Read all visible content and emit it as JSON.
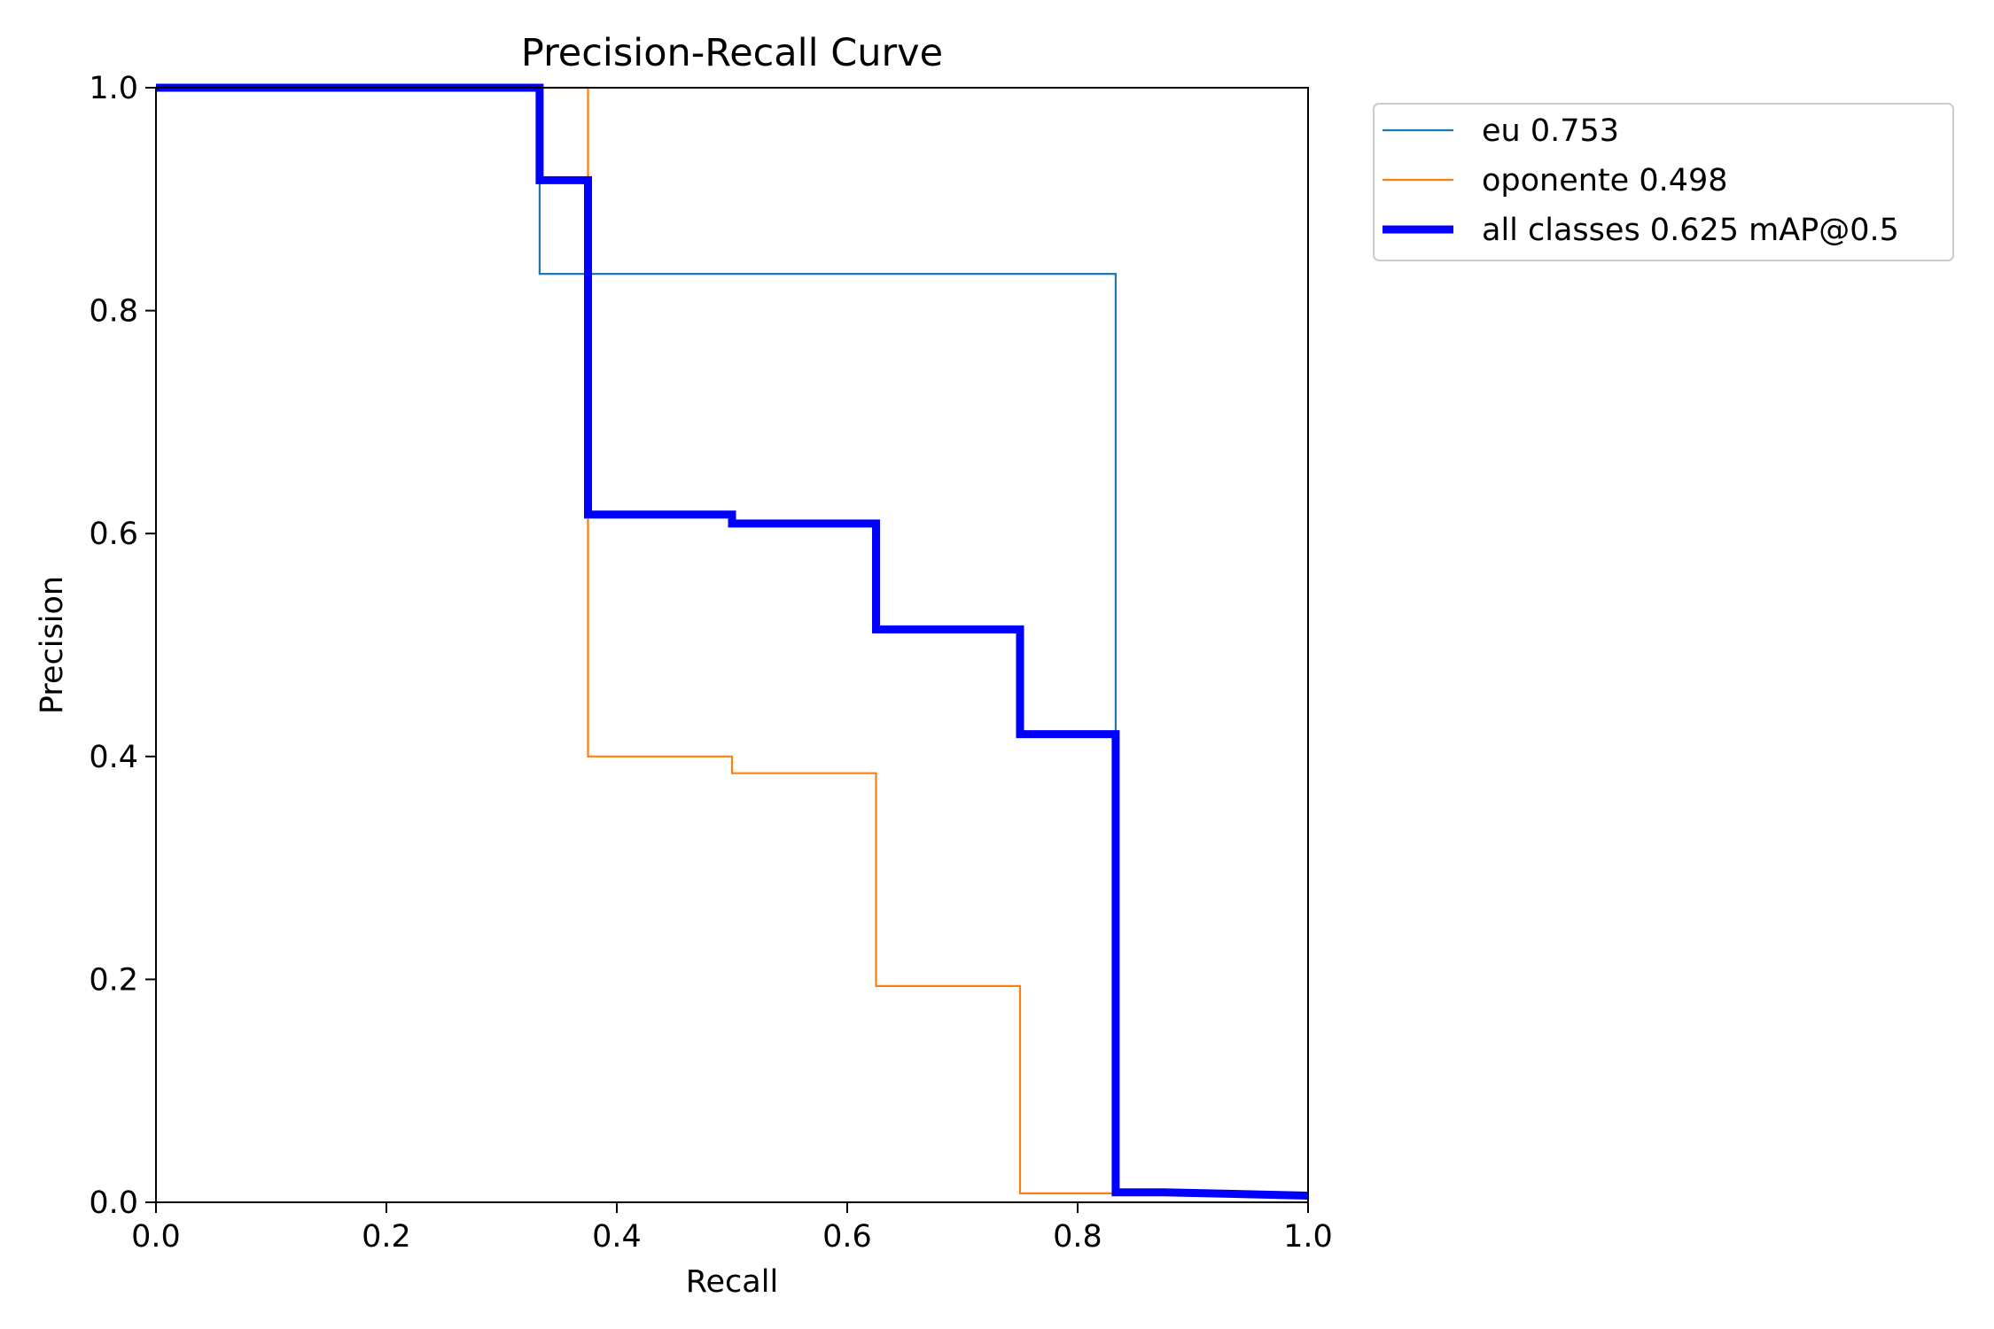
{
  "chart_data": {
    "type": "line",
    "title": "Precision-Recall Curve",
    "xlabel": "Recall",
    "ylabel": "Precision",
    "xlim": [
      0,
      1
    ],
    "ylim": [
      0,
      1
    ],
    "xticks": [
      "0.0",
      "0.2",
      "0.4",
      "0.6",
      "0.8",
      "1.0"
    ],
    "yticks": [
      "0.0",
      "0.2",
      "0.4",
      "0.6",
      "0.8",
      "1.0"
    ],
    "grid": false,
    "legend_position": "outside-top-right",
    "series": [
      {
        "name": "eu 0.753",
        "color": "#1f77b4",
        "line": "thin",
        "points": [
          [
            0,
            1.0
          ],
          [
            0.333,
            1.0
          ],
          [
            0.333,
            0.833
          ],
          [
            0.833,
            0.833
          ],
          [
            0.833,
            0.01
          ],
          [
            1.0,
            0.008
          ]
        ]
      },
      {
        "name": "oponente 0.498",
        "color": "#ff7f0e",
        "line": "thin",
        "points": [
          [
            0,
            1.0
          ],
          [
            0.375,
            1.0
          ],
          [
            0.375,
            0.4
          ],
          [
            0.5,
            0.4
          ],
          [
            0.5,
            0.385
          ],
          [
            0.625,
            0.385
          ],
          [
            0.625,
            0.194
          ],
          [
            0.75,
            0.194
          ],
          [
            0.75,
            0.008
          ],
          [
            0.875,
            0.008
          ],
          [
            1.0,
            0.005
          ]
        ]
      },
      {
        "name": "all classes 0.625 mAP@0.5",
        "color": "#0000ff",
        "line": "thick",
        "points": [
          [
            0,
            1.0
          ],
          [
            0.333,
            1.0
          ],
          [
            0.333,
            0.917
          ],
          [
            0.375,
            0.917
          ],
          [
            0.375,
            0.617
          ],
          [
            0.5,
            0.617
          ],
          [
            0.5,
            0.609
          ],
          [
            0.625,
            0.609
          ],
          [
            0.625,
            0.514
          ],
          [
            0.75,
            0.514
          ],
          [
            0.75,
            0.42
          ],
          [
            0.833,
            0.42
          ],
          [
            0.833,
            0.009
          ],
          [
            0.875,
            0.009
          ],
          [
            1.0,
            0.006
          ]
        ]
      }
    ]
  }
}
